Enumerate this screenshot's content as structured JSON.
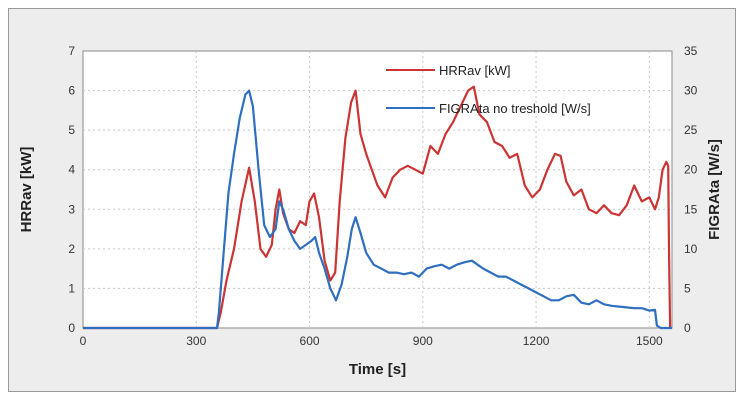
{
  "chart_data": {
    "type": "line",
    "xlabel": "Time [s]",
    "ylabel_left": "HRRav [kW]",
    "ylabel_right": "FIGRAta [W/s]",
    "xlim": [
      0,
      1560
    ],
    "ylim_left": [
      0,
      7
    ],
    "ylim_right": [
      0,
      35
    ],
    "x_ticks": [
      0,
      300,
      600,
      900,
      1200,
      1500
    ],
    "y_ticks_left": [
      0,
      1,
      2,
      3,
      4,
      5,
      6,
      7
    ],
    "y_ticks_right": [
      0,
      5,
      10,
      15,
      20,
      25,
      30,
      35
    ],
    "grid": "dashed vertical and horizontal",
    "legend_position": "top-right",
    "series": [
      {
        "name": "HRRav [kW]",
        "color": "#cc3333",
        "axis": "left",
        "x": [
          0,
          300,
          355,
          365,
          380,
          400,
          420,
          440,
          455,
          470,
          485,
          500,
          510,
          520,
          530,
          545,
          560,
          575,
          590,
          600,
          612,
          625,
          640,
          655,
          668,
          680,
          695,
          710,
          722,
          735,
          750,
          765,
          780,
          800,
          820,
          840,
          860,
          880,
          900,
          920,
          940,
          960,
          980,
          1000,
          1020,
          1035,
          1050,
          1070,
          1090,
          1110,
          1130,
          1150,
          1170,
          1190,
          1210,
          1230,
          1250,
          1265,
          1280,
          1300,
          1320,
          1340,
          1360,
          1380,
          1400,
          1420,
          1440,
          1460,
          1480,
          1500,
          1515,
          1525,
          1535,
          1545,
          1550,
          1552,
          1555
        ],
        "values": [
          0,
          0,
          0,
          0.4,
          1.2,
          2.0,
          3.2,
          4.05,
          3.2,
          2.0,
          1.8,
          2.1,
          3.0,
          3.5,
          2.9,
          2.5,
          2.4,
          2.7,
          2.6,
          3.2,
          3.4,
          2.8,
          1.7,
          1.2,
          1.4,
          3.2,
          4.8,
          5.7,
          6.0,
          4.9,
          4.4,
          4.0,
          3.6,
          3.3,
          3.8,
          4.0,
          4.1,
          4.0,
          3.9,
          4.6,
          4.4,
          4.9,
          5.2,
          5.6,
          6.0,
          6.1,
          5.4,
          5.2,
          4.7,
          4.6,
          4.3,
          4.4,
          3.6,
          3.3,
          3.5,
          4.0,
          4.4,
          4.35,
          3.7,
          3.35,
          3.5,
          3.0,
          2.9,
          3.1,
          2.9,
          2.85,
          3.1,
          3.6,
          3.2,
          3.3,
          3.0,
          3.3,
          4.0,
          4.2,
          4.1,
          2.0,
          0
        ]
      },
      {
        "name": "FIGRAta no treshold [W/s]",
        "color": "#2e6fc0",
        "axis": "right",
        "x": [
          0,
          300,
          355,
          360,
          370,
          385,
          400,
          415,
          430,
          440,
          450,
          465,
          480,
          495,
          510,
          520,
          530,
          545,
          560,
          575,
          590,
          605,
          615,
          625,
          640,
          655,
          670,
          685,
          700,
          712,
          722,
          735,
          750,
          770,
          790,
          810,
          830,
          850,
          870,
          890,
          910,
          930,
          950,
          970,
          990,
          1010,
          1030,
          1045,
          1060,
          1080,
          1100,
          1120,
          1140,
          1160,
          1180,
          1200,
          1220,
          1240,
          1260,
          1280,
          1300,
          1320,
          1340,
          1360,
          1380,
          1400,
          1420,
          1440,
          1460,
          1480,
          1500,
          1515,
          1520,
          1530,
          1545,
          1560
        ],
        "values": [
          0,
          0,
          0,
          2.0,
          8.0,
          17.0,
          22.0,
          26.5,
          29.5,
          30.0,
          28.0,
          20.0,
          13.0,
          11.5,
          12.5,
          16.0,
          15.0,
          12.5,
          11.0,
          10.0,
          10.5,
          11.0,
          11.5,
          9.5,
          7.5,
          5.0,
          3.5,
          5.5,
          9.0,
          12.5,
          14.0,
          12.0,
          9.5,
          8.0,
          7.5,
          7.0,
          7.0,
          6.8,
          7.0,
          6.5,
          7.5,
          7.8,
          8.0,
          7.5,
          8.0,
          8.3,
          8.5,
          8.0,
          7.5,
          7.0,
          6.5,
          6.5,
          6.0,
          5.5,
          5.0,
          4.5,
          4.0,
          3.5,
          3.5,
          4.0,
          4.2,
          3.2,
          3.0,
          3.5,
          3.0,
          2.8,
          2.7,
          2.6,
          2.5,
          2.5,
          2.2,
          2.3,
          0.3,
          0,
          0,
          0
        ]
      }
    ]
  }
}
